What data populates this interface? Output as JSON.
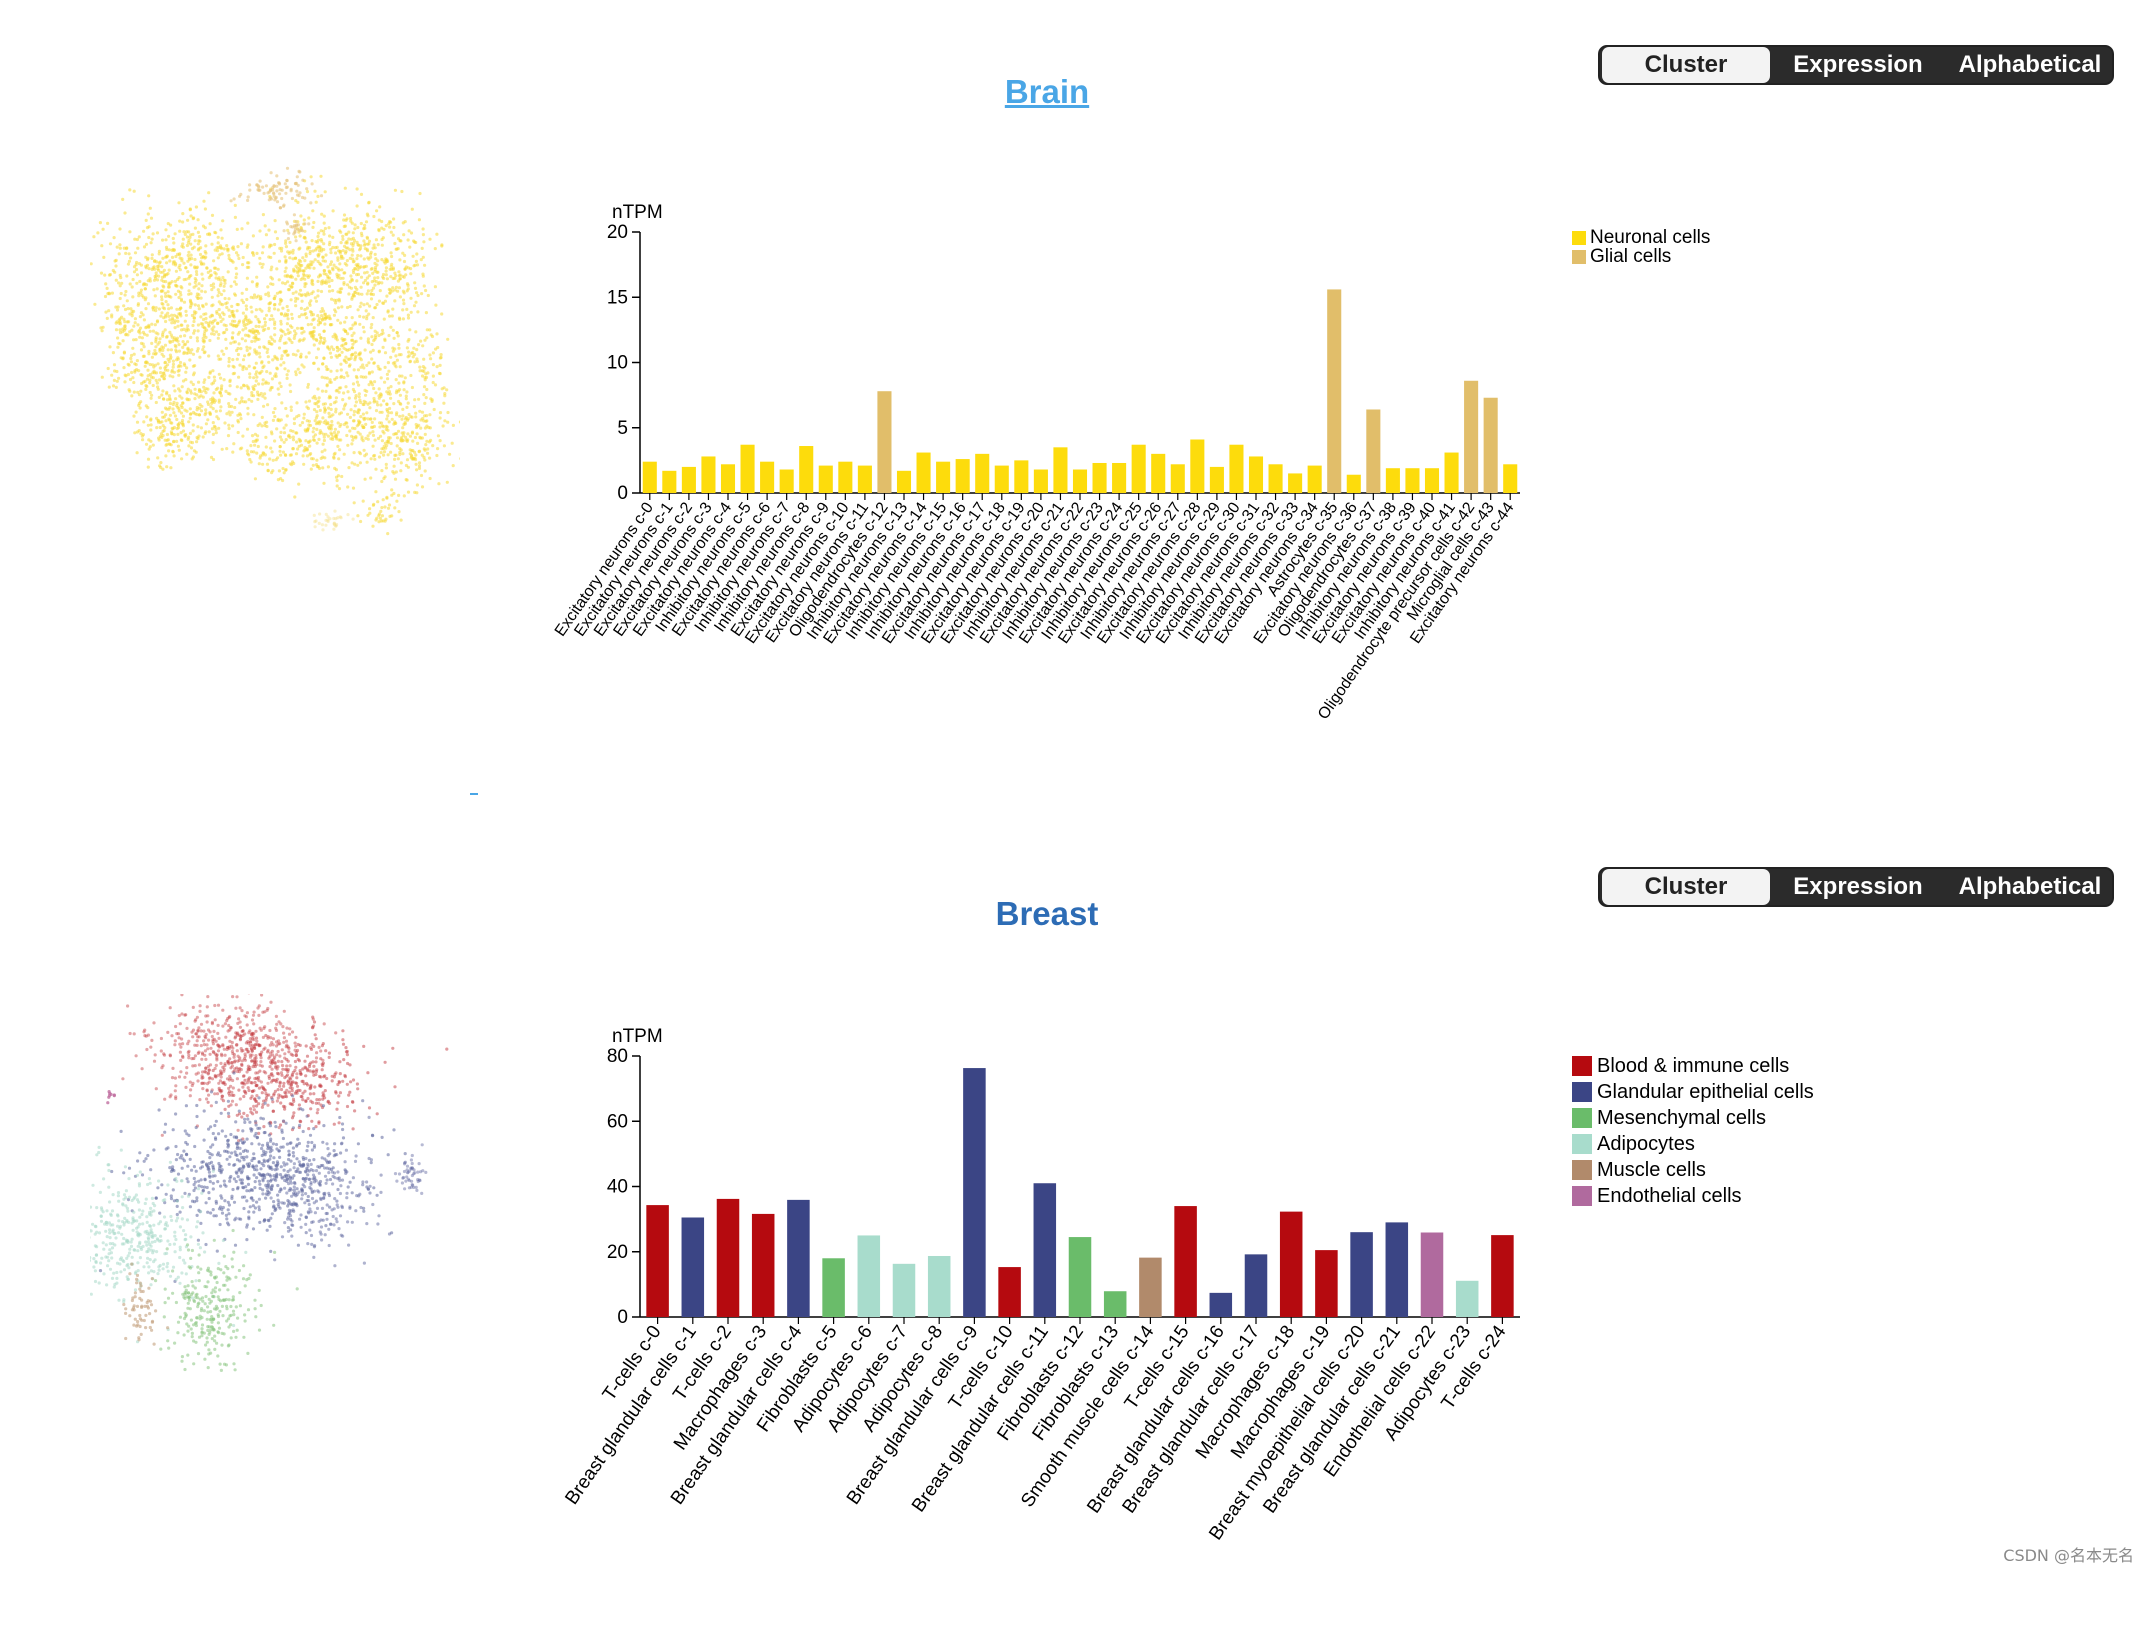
{
  "sort_options": [
    "Cluster",
    "Expression",
    "Alphabetical"
  ],
  "panels": [
    {
      "id": "brain",
      "title": "Brain",
      "colors": {
        "title": "#4aa6e6"
      },
      "umap_blobs": [
        {
          "color": "#f6d936"
        },
        {
          "color": "#e6c57e"
        }
      ],
      "chart_data": {
        "type": "bar",
        "title": "",
        "ylabel": "nTPM",
        "xlabel": "",
        "ylim": [
          0,
          20
        ],
        "yticks": [
          0,
          5,
          10,
          15,
          20
        ],
        "categories": [
          "Excitatory neurons c-0",
          "Excitatory neurons c-1",
          "Excitatory neurons c-2",
          "Excitatory neurons c-3",
          "Excitatory neurons c-4",
          "Inhibitory neurons c-5",
          "Excitatory neurons c-6",
          "Inhibitory neurons c-7",
          "Inhibitory neurons c-8",
          "Excitatory neurons c-9",
          "Excitatory neurons c-10",
          "Excitatory neurons c-11",
          "Oligodendrocytes c-12",
          "Inhibitory neurons c-13",
          "Excitatory neurons c-14",
          "Inhibitory neurons c-15",
          "Inhibitory neurons c-16",
          "Excitatory neurons c-17",
          "Inhibitory neurons c-18",
          "Excitatory neurons c-19",
          "Excitatory neurons c-20",
          "Inhibitory neurons c-21",
          "Excitatory neurons c-22",
          "Inhibitory neurons c-23",
          "Excitatory neurons c-24",
          "Inhibitory neurons c-25",
          "Excitatory neurons c-26",
          "Inhibitory neurons c-27",
          "Excitatory neurons c-28",
          "Inhibitory neurons c-29",
          "Excitatory neurons c-30",
          "Excitatory neurons c-31",
          "Inhibitory neurons c-32",
          "Excitatory neurons c-33",
          "Excitatory neurons c-34",
          "Astrocytes c-35",
          "Excitatory neurons c-36",
          "Oligodendrocytes c-37",
          "Inhibitory neurons c-38",
          "Excitatory neurons c-39",
          "Excitatory neurons c-40",
          "Inhibitory neurons c-41",
          "Oligodendrocyte precursor cells c-42",
          "Microglial cells c-43",
          "Excitatory neurons c-44"
        ],
        "values": [
          2.4,
          1.7,
          2.0,
          2.8,
          2.2,
          3.7,
          2.4,
          1.8,
          3.6,
          2.1,
          2.4,
          2.1,
          7.8,
          1.7,
          3.1,
          2.4,
          2.6,
          3.0,
          2.1,
          2.5,
          1.8,
          3.5,
          1.8,
          2.3,
          2.3,
          3.7,
          3.0,
          2.2,
          4.1,
          2.0,
          3.7,
          2.8,
          2.2,
          1.5,
          2.1,
          15.6,
          1.4,
          6.4,
          1.9,
          1.9,
          1.9,
          3.1,
          8.6,
          7.3,
          2.2
        ],
        "groups": [
          0,
          0,
          0,
          0,
          0,
          0,
          0,
          0,
          0,
          0,
          0,
          0,
          1,
          0,
          0,
          0,
          0,
          0,
          0,
          0,
          0,
          0,
          0,
          0,
          0,
          0,
          0,
          0,
          0,
          0,
          0,
          0,
          0,
          0,
          0,
          1,
          0,
          1,
          0,
          0,
          0,
          0,
          1,
          1,
          0
        ],
        "legend": [
          {
            "label": "Neuronal cells",
            "color": "#fddc0c"
          },
          {
            "label": "Glial cells",
            "color": "#e1be6a"
          }
        ],
        "legend_position": "right"
      }
    },
    {
      "id": "breast",
      "title": "Breast",
      "colors": {
        "title": "#2d6cb5"
      },
      "umap_blobs": [
        {
          "color": "#c4393f"
        },
        {
          "color": "#5f679f"
        },
        {
          "color": "#a7d8c8"
        },
        {
          "color": "#88c57f"
        },
        {
          "color": "#c3a07d"
        },
        {
          "color": "#c06fa0"
        }
      ],
      "chart_data": {
        "type": "bar",
        "title": "",
        "ylabel": "nTPM",
        "xlabel": "",
        "ylim": [
          0,
          80
        ],
        "yticks": [
          0,
          20,
          40,
          60,
          80
        ],
        "categories": [
          "T-cells c-0",
          "Breast glandular cells c-1",
          "T-cells c-2",
          "Macrophages c-3",
          "Breast glandular cells c-4",
          "Fibroblasts c-5",
          "Adipocytes c-6",
          "Adipocytes c-7",
          "Adipocytes c-8",
          "Breast glandular cells c-9",
          "T-cells c-10",
          "Breast glandular cells c-11",
          "Fibroblasts c-12",
          "Fibroblasts c-13",
          "Smooth muscle cells c-14",
          "T-cells c-15",
          "Breast glandular cells c-16",
          "Breast glandular cells c-17",
          "Macrophages c-18",
          "Macrophages c-19",
          "Breast myoepithelial cells c-20",
          "Breast glandular cells c-21",
          "Endothelial cells c-22",
          "Adipocytes c-23",
          "T-cells c-24"
        ],
        "values": [
          34.3,
          30.5,
          36.2,
          31.6,
          35.9,
          18.0,
          25.0,
          16.3,
          18.7,
          76.3,
          15.3,
          41.0,
          24.5,
          7.9,
          18.2,
          34.0,
          7.4,
          19.2,
          32.3,
          20.5,
          26.0,
          29.0,
          25.9,
          11.1,
          25.1
        ],
        "groups": [
          0,
          1,
          0,
          0,
          1,
          2,
          3,
          3,
          3,
          1,
          0,
          1,
          2,
          2,
          4,
          0,
          1,
          1,
          0,
          0,
          1,
          1,
          5,
          3,
          0
        ],
        "legend": [
          {
            "label": "Blood & immune cells",
            "color": "#b50a0f"
          },
          {
            "label": "Glandular epithelial cells",
            "color": "#3b4585"
          },
          {
            "label": "Mesenchymal cells",
            "color": "#6abc6a"
          },
          {
            "label": "Adipocytes",
            "color": "#a8dccc"
          },
          {
            "label": "Muscle cells",
            "color": "#b18a6b"
          },
          {
            "label": "Endothelial cells",
            "color": "#b06a9e"
          }
        ],
        "legend_position": "right"
      }
    }
  ],
  "watermark": "CSDN @名本无名"
}
